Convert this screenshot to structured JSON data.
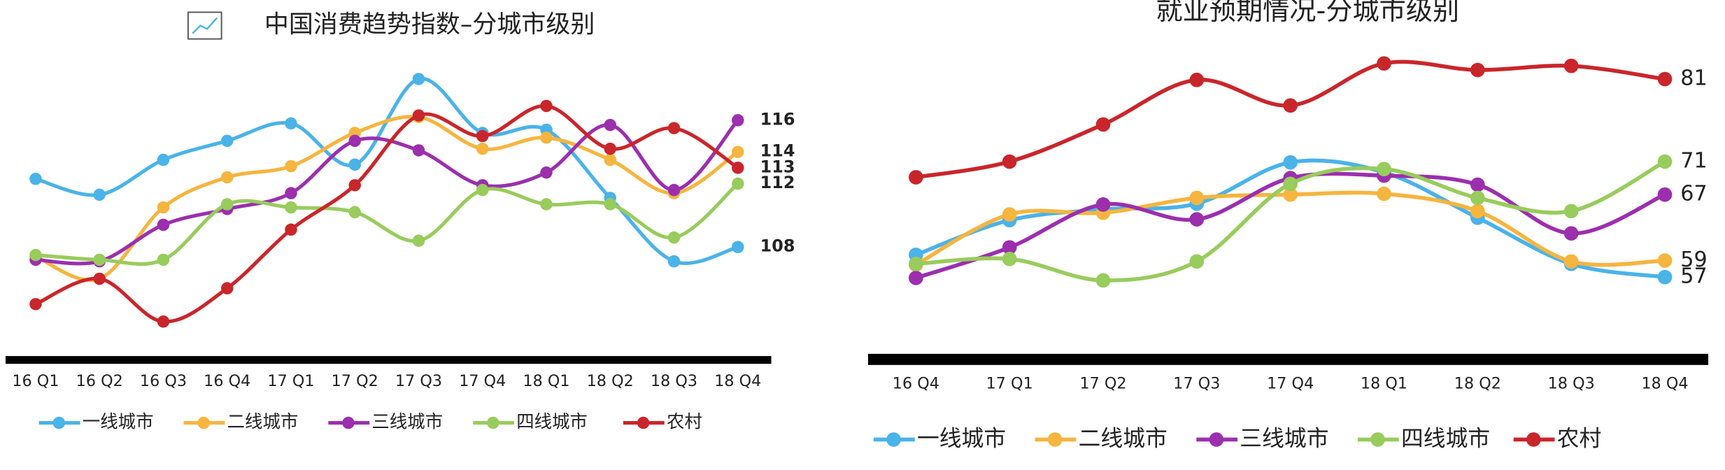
{
  "chart_data": [
    {
      "type": "line",
      "title": "中国消费趋势指数–分城市级别",
      "categories": [
        "16 Q1",
        "16 Q2",
        "16 Q3",
        "16 Q4",
        "17 Q1",
        "17 Q2",
        "17 Q3",
        "17 Q4",
        "18 Q1",
        "18 Q2",
        "18 Q3",
        "18 Q4"
      ],
      "series": [
        {
          "name": "一线城市",
          "color": "#4ab3e8",
          "values": [
            112.3,
            111.3,
            113.5,
            114.7,
            115.8,
            113.2,
            118.6,
            115.2,
            115.4,
            111.1,
            107.1,
            108
          ]
        },
        {
          "name": "二线城市",
          "color": "#f5b53f",
          "values": [
            107.4,
            106.0,
            110.5,
            112.4,
            113.1,
            115.2,
            116.2,
            114.2,
            114.9,
            113.5,
            111.4,
            114
          ]
        },
        {
          "name": "三线城市",
          "color": "#9b2fae",
          "values": [
            107.2,
            107.1,
            109.4,
            110.4,
            111.4,
            114.7,
            114.1,
            111.9,
            112.7,
            115.7,
            111.6,
            116
          ]
        },
        {
          "name": "四线城市",
          "color": "#98cc5c",
          "values": [
            107.5,
            107.2,
            107.2,
            110.7,
            110.5,
            110.2,
            108.4,
            111.6,
            110.7,
            110.7,
            108.6,
            112
          ]
        },
        {
          "name": "农村",
          "color": "#c9262b",
          "values": [
            104.4,
            106.0,
            103.3,
            105.4,
            109.1,
            111.9,
            116.3,
            115.0,
            116.9,
            114.2,
            115.5,
            113
          ]
        }
      ]
    },
    {
      "type": "line",
      "title": "就业预期情况-分城市级别",
      "categories": [
        "16 Q4",
        "17 Q1",
        "17 Q2",
        "17 Q3",
        "17 Q4",
        "18 Q1",
        "18 Q2",
        "18 Q3",
        "18 Q4"
      ],
      "series": [
        {
          "name": "一线城市",
          "color": "#4ab3e8",
          "values": [
            59.7,
            63.9,
            65.2,
            65.9,
            70.9,
            69.7,
            64.2,
            58.6,
            57
          ]
        },
        {
          "name": "二线城市",
          "color": "#f5b53f",
          "values": [
            58.5,
            64.6,
            64.8,
            66.6,
            67.0,
            67.1,
            65.0,
            58.9,
            59
          ]
        },
        {
          "name": "三线城市",
          "color": "#9b2fae",
          "values": [
            56.9,
            60.6,
            65.8,
            64.0,
            69.0,
            69.3,
            68.2,
            62.3,
            67
          ]
        },
        {
          "name": "四线城市",
          "color": "#98cc5c",
          "values": [
            58.6,
            59.2,
            56.6,
            58.9,
            68.3,
            70.1,
            66.6,
            65.0,
            71
          ]
        },
        {
          "name": "农村",
          "color": "#c9262b",
          "values": [
            69.1,
            71.0,
            75.5,
            80.9,
            77.8,
            82.9,
            82.1,
            82.6,
            81
          ]
        }
      ]
    }
  ]
}
